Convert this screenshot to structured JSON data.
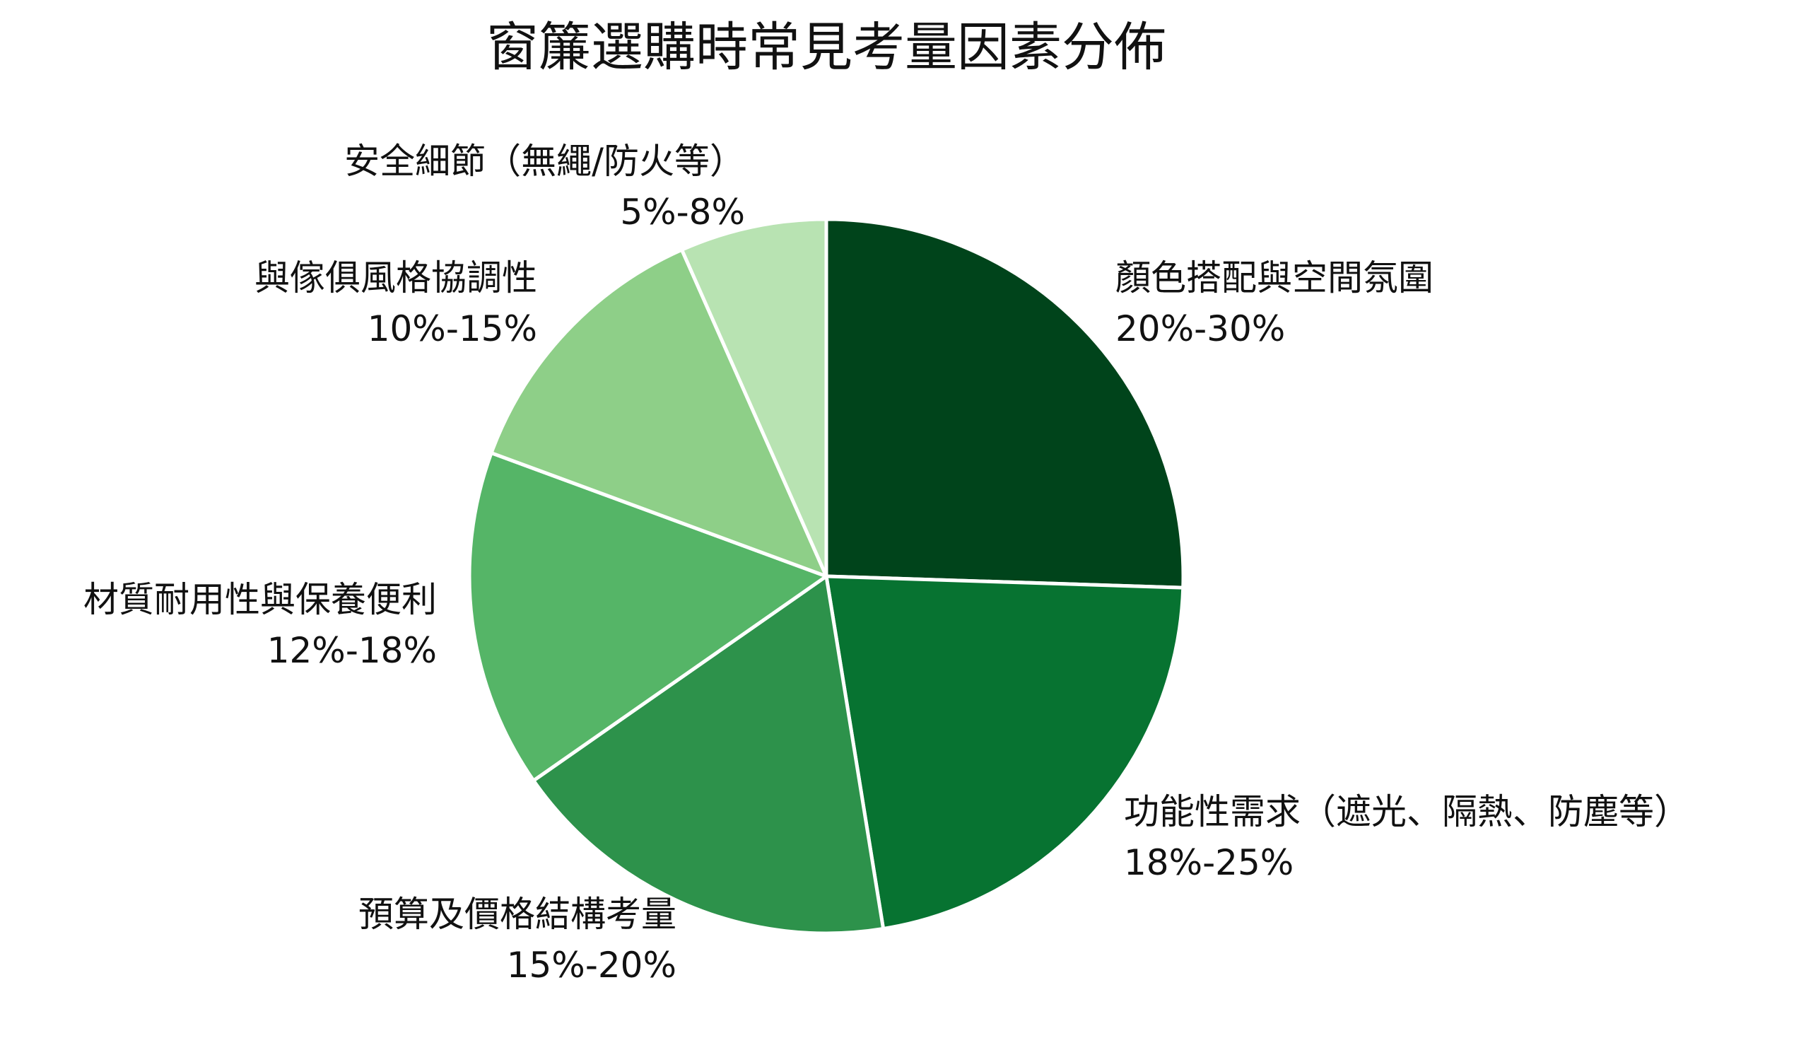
{
  "chart_data": {
    "type": "pie",
    "title": "窗簾選購時常見考量因素分佈",
    "start_angle": "12 o'clock",
    "direction": "clockwise",
    "slices": [
      {
        "label": "顏色搭配與空間氛圍",
        "range_label": "20%-30%",
        "value": 25,
        "color": "#00441b"
      },
      {
        "label": "功能性需求（遮光、隔熱、防塵等）",
        "range_label": "18%-25%",
        "value": 21.5,
        "color": "#077331"
      },
      {
        "label": "預算及價格結構考量",
        "range_label": "15%-20%",
        "value": 17.5,
        "color": "#2d924b"
      },
      {
        "label": "材質耐用性與保養便利",
        "range_label": "12%-18%",
        "value": 15,
        "color": "#55b567"
      },
      {
        "label": "與傢俱風格協調性",
        "range_label": "10%-15%",
        "value": 12.5,
        "color": "#8ecf88"
      },
      {
        "label": "安全細節（無繩/防火等）",
        "range_label": "5%-8%",
        "value": 6.5,
        "color": "#b8e3b2"
      }
    ]
  }
}
